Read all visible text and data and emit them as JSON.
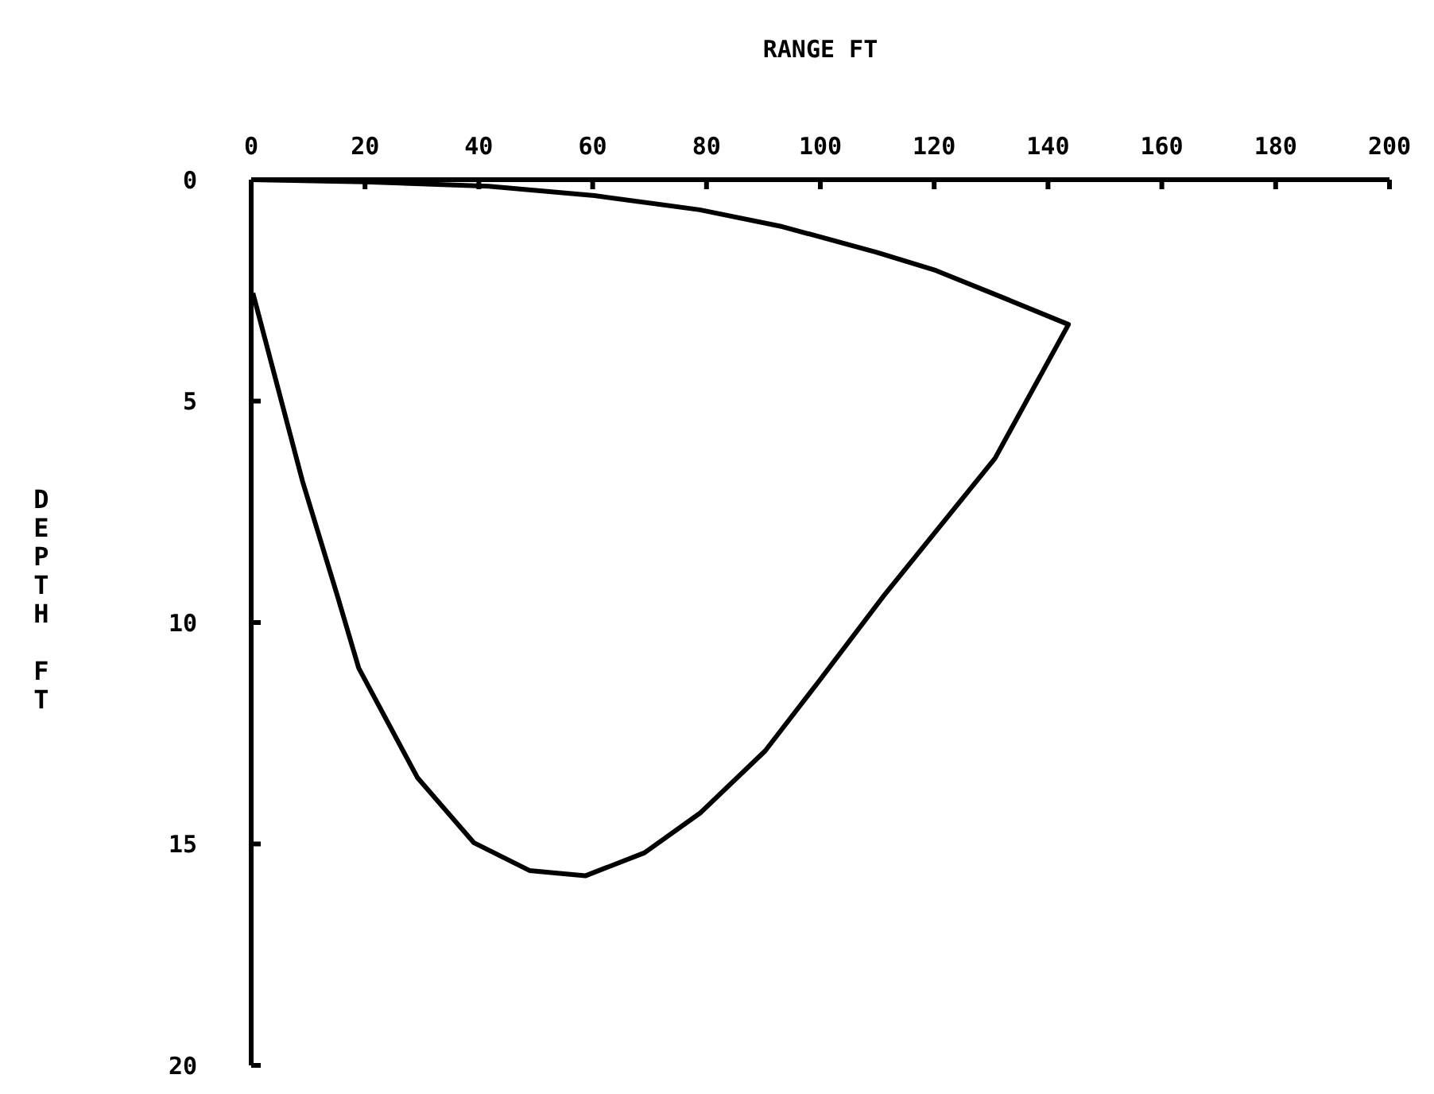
{
  "chart_data": {
    "type": "line",
    "xlabel": "RANGE FT",
    "ylabel": "DEPTH FT",
    "xlim": [
      0,
      200
    ],
    "xticks": [
      0,
      20,
      40,
      60,
      80,
      100,
      120,
      140,
      160,
      180,
      200
    ],
    "ylim": [
      20,
      0
    ],
    "yticks": [
      0,
      5,
      10,
      15,
      20
    ],
    "grid": false,
    "legend": false,
    "marker": "none",
    "line_style": "solid",
    "series": [
      {
        "color": "#000000",
        "x": [
          0,
          20,
          41.7,
          60.3,
          78.8,
          93.3,
          109.9,
          120.3,
          132.8,
          143.6,
          130.7,
          111,
          99.6,
          90.3,
          78.9,
          69.1,
          58.7,
          48.9,
          39.1,
          29.2,
          18.9,
          15.2,
          9,
          0.3
        ],
        "values": [
          0,
          0.05,
          0.15,
          0.36,
          0.68,
          1.06,
          1.64,
          2.05,
          2.7,
          3.27,
          6.29,
          9.42,
          11.35,
          12.9,
          14.3,
          15.2,
          15.72,
          15.6,
          14.97,
          13.5,
          11.03,
          9.42,
          6.8,
          2.56
        ]
      }
    ]
  }
}
